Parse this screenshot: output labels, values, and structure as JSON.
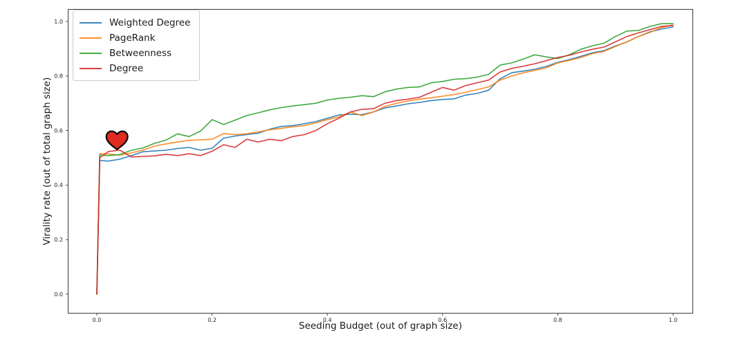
{
  "figure": {
    "background_color": "#ffffff",
    "spine_color": "#3a3a3a",
    "tick_label_color": "#262626"
  },
  "legend": {
    "items": [
      {
        "label": "Weighted Degree"
      },
      {
        "label": "PageRank"
      },
      {
        "label": "Betweenness"
      },
      {
        "label": "Degree"
      }
    ]
  },
  "chart_data": {
    "type": "line",
    "title": "",
    "xlabel": "Seeding Budget (out of graph size)",
    "ylabel": "Virality rate (out of total graph size)",
    "xlim": [
      -0.05,
      1.035
    ],
    "ylim": [
      -0.07,
      1.045
    ],
    "xticks": [
      0.0,
      0.2,
      0.4,
      0.6,
      0.8,
      1.0
    ],
    "yticks": [
      0.0,
      0.2,
      0.4,
      0.6,
      0.8,
      1.0
    ],
    "grid": false,
    "legend_position": "upper left",
    "x": [
      0,
      0.005,
      0.02,
      0.04,
      0.06,
      0.08,
      0.1,
      0.12,
      0.14,
      0.16,
      0.18,
      0.2,
      0.22,
      0.24,
      0.26,
      0.28,
      0.3,
      0.32,
      0.34,
      0.36,
      0.38,
      0.4,
      0.42,
      0.44,
      0.46,
      0.48,
      0.5,
      0.52,
      0.54,
      0.56,
      0.58,
      0.6,
      0.62,
      0.64,
      0.66,
      0.68,
      0.7,
      0.72,
      0.74,
      0.76,
      0.78,
      0.8,
      0.82,
      0.84,
      0.86,
      0.88,
      0.9,
      0.92,
      0.94,
      0.96,
      0.98,
      1.0
    ],
    "series": [
      {
        "name": "Weighted Degree",
        "color": "#1f77b4",
        "values": [
          0,
          0.49,
          0.488,
          0.495,
          0.508,
          0.522,
          0.525,
          0.528,
          0.534,
          0.538,
          0.528,
          0.535,
          0.572,
          0.58,
          0.585,
          0.59,
          0.605,
          0.615,
          0.618,
          0.625,
          0.633,
          0.645,
          0.657,
          0.66,
          0.658,
          0.668,
          0.683,
          0.69,
          0.698,
          0.703,
          0.71,
          0.714,
          0.716,
          0.73,
          0.736,
          0.748,
          0.79,
          0.812,
          0.818,
          0.825,
          0.835,
          0.85,
          0.86,
          0.872,
          0.885,
          0.893,
          0.91,
          0.925,
          0.945,
          0.962,
          0.972,
          0.98
        ]
      },
      {
        "name": "PageRank",
        "color": "#ff7f0e",
        "values": [
          0,
          0.515,
          0.514,
          0.51,
          0.518,
          0.528,
          0.543,
          0.551,
          0.558,
          0.564,
          0.566,
          0.568,
          0.589,
          0.585,
          0.588,
          0.595,
          0.603,
          0.608,
          0.614,
          0.618,
          0.628,
          0.64,
          0.65,
          0.668,
          0.655,
          0.668,
          0.688,
          0.7,
          0.708,
          0.715,
          0.72,
          0.726,
          0.732,
          0.74,
          0.75,
          0.76,
          0.785,
          0.8,
          0.812,
          0.82,
          0.83,
          0.848,
          0.857,
          0.868,
          0.882,
          0.89,
          0.908,
          0.925,
          0.945,
          0.96,
          0.978,
          0.987
        ]
      },
      {
        "name": "Betweenness",
        "color": "#2ca02c",
        "values": [
          0,
          0.51,
          0.508,
          0.512,
          0.528,
          0.536,
          0.553,
          0.565,
          0.588,
          0.578,
          0.598,
          0.64,
          0.622,
          0.638,
          0.655,
          0.665,
          0.676,
          0.684,
          0.69,
          0.695,
          0.7,
          0.712,
          0.718,
          0.722,
          0.728,
          0.724,
          0.742,
          0.752,
          0.758,
          0.76,
          0.775,
          0.78,
          0.788,
          0.79,
          0.796,
          0.806,
          0.84,
          0.848,
          0.862,
          0.878,
          0.87,
          0.864,
          0.878,
          0.898,
          0.911,
          0.92,
          0.945,
          0.965,
          0.967,
          0.982,
          0.992,
          0.992
        ]
      },
      {
        "name": "Degree",
        "color": "#d62728",
        "values": [
          0,
          0.5,
          0.523,
          0.528,
          0.503,
          0.505,
          0.507,
          0.513,
          0.508,
          0.515,
          0.508,
          0.524,
          0.548,
          0.538,
          0.568,
          0.558,
          0.568,
          0.563,
          0.578,
          0.585,
          0.6,
          0.625,
          0.645,
          0.668,
          0.678,
          0.68,
          0.7,
          0.71,
          0.715,
          0.722,
          0.74,
          0.758,
          0.748,
          0.765,
          0.775,
          0.785,
          0.815,
          0.828,
          0.836,
          0.845,
          0.856,
          0.868,
          0.876,
          0.888,
          0.898,
          0.906,
          0.925,
          0.945,
          0.958,
          0.97,
          0.982,
          0.985
        ]
      }
    ],
    "annotations": [
      {
        "type": "heart-emoji",
        "x": 0.035,
        "y": 0.565,
        "fill": "#e02b20",
        "outline": "#0d0d0d"
      }
    ]
  }
}
